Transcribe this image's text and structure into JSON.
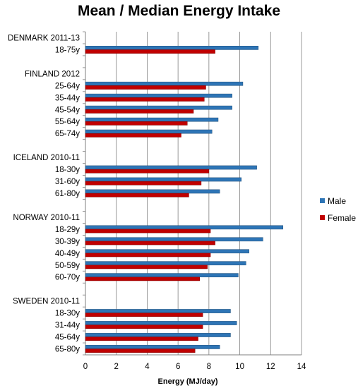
{
  "chart_data": {
    "type": "bar",
    "orientation": "horizontal",
    "title": "Mean / Median Energy Intake",
    "xlabel": "Energy (MJ/day)",
    "xlim": [
      0,
      14
    ],
    "xticks": [
      "0",
      "2",
      "4",
      "6",
      "8",
      "10",
      "12",
      "14"
    ],
    "grid": "vertical",
    "legend_position": "right",
    "colors": {
      "male": "#2E75B6",
      "female": "#C00000",
      "grid": "#7F7F7F"
    },
    "series": [
      {
        "name": "Male",
        "color": "#2E75B6"
      },
      {
        "name": "Female",
        "color": "#C00000"
      }
    ],
    "groups": [
      {
        "label": "DENMARK 2011-13",
        "rows": [
          {
            "category": "18-75y",
            "male": 11.2,
            "female": 8.4
          }
        ]
      },
      {
        "label": "FINLAND 2012",
        "rows": [
          {
            "category": "25-64y",
            "male": 10.2,
            "female": 7.8
          },
          {
            "category": "35-44y",
            "male": 9.5,
            "female": 7.7
          },
          {
            "category": "45-54y",
            "male": 9.5,
            "female": 7.0
          },
          {
            "category": "55-64y",
            "male": 8.6,
            "female": 6.6
          },
          {
            "category": "65-74y",
            "male": 8.2,
            "female": 6.2
          }
        ]
      },
      {
        "label": "ICELAND 2010-11",
        "rows": [
          {
            "category": "18-30y",
            "male": 11.1,
            "female": 8.0
          },
          {
            "category": "31-60y",
            "male": 10.1,
            "female": 7.5
          },
          {
            "category": "61-80y",
            "male": 8.7,
            "female": 6.7
          }
        ]
      },
      {
        "label": "NORWAY 2010-11",
        "rows": [
          {
            "category": "18-29y",
            "male": 12.8,
            "female": 8.1
          },
          {
            "category": "30-39y",
            "male": 11.5,
            "female": 8.4
          },
          {
            "category": "40-49y",
            "male": 10.6,
            "female": 8.1
          },
          {
            "category": "50-59y",
            "male": 10.4,
            "female": 7.9
          },
          {
            "category": "60-70y",
            "male": 9.9,
            "female": 7.4
          }
        ]
      },
      {
        "label": "SWEDEN 2010-11",
        "rows": [
          {
            "category": "18-30y",
            "male": 9.4,
            "female": 7.6
          },
          {
            "category": "31-44y",
            "male": 9.8,
            "female": 7.6
          },
          {
            "category": "45-64y",
            "male": 9.4,
            "female": 7.3
          },
          {
            "category": "65-80y",
            "male": 8.7,
            "female": 7.1
          }
        ]
      }
    ]
  }
}
